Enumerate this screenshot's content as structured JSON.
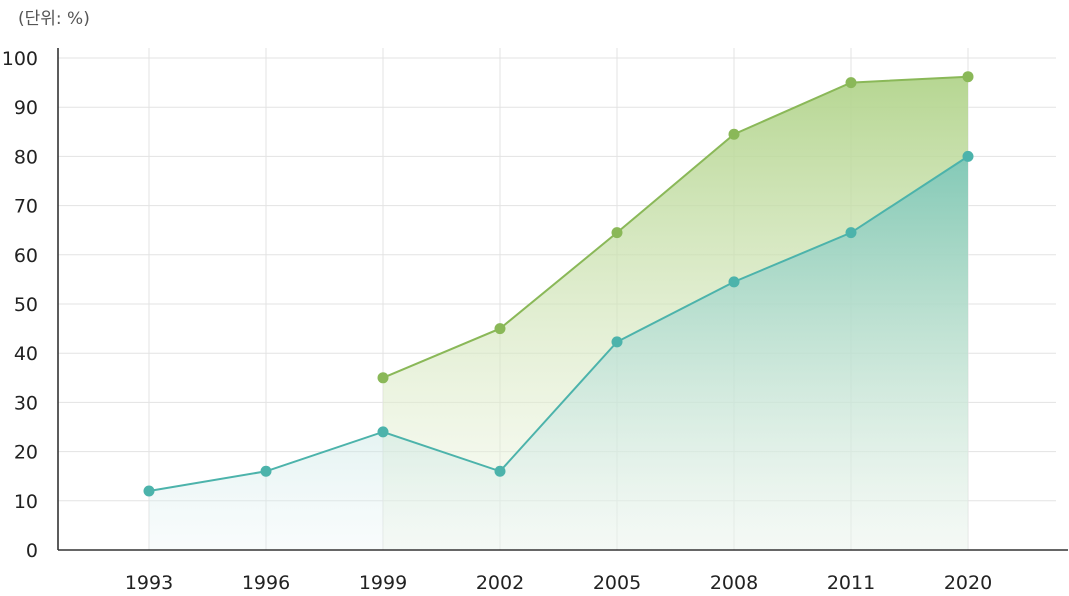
{
  "unit_label": "(단위: %)",
  "chart_data": {
    "type": "area",
    "title": "",
    "xlabel": "",
    "ylabel": "",
    "categories": [
      "1993",
      "1996",
      "1999",
      "2002",
      "2005",
      "2008",
      "2011",
      "2020"
    ],
    "ylim": [
      0,
      100
    ],
    "yticks": [
      0,
      10,
      20,
      30,
      40,
      50,
      60,
      70,
      80,
      90,
      100
    ],
    "grid": true,
    "legend": "none",
    "series": [
      {
        "color": "#8ab858",
        "values": [
          null,
          null,
          35,
          45,
          64.5,
          84.5,
          95,
          96.2
        ]
      },
      {
        "color": "#4cb3ab",
        "values": [
          12,
          16,
          24,
          16,
          42.3,
          54.5,
          64.5,
          80
        ]
      }
    ]
  }
}
